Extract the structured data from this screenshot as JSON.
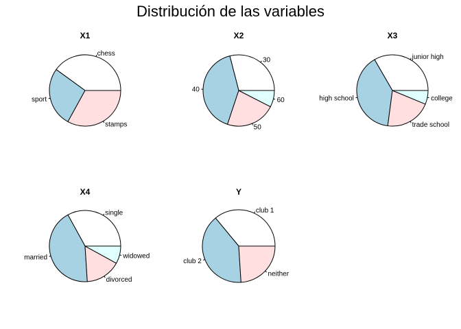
{
  "figure": {
    "title": "Distribución de las variables"
  },
  "chart_data": [
    {
      "type": "pie",
      "title": "X1",
      "categories": [
        "chess",
        "sport",
        "stamps"
      ],
      "values": [
        0.4,
        0.27,
        0.33
      ],
      "colors": [
        "#ffffff",
        "#a6d2e3",
        "#ffdfdf"
      ]
    },
    {
      "type": "pie",
      "title": "X2",
      "categories": [
        "30",
        "40",
        "50",
        "60"
      ],
      "values": [
        0.27,
        0.38,
        0.21,
        0.07
      ],
      "colors": [
        "#ffffff",
        "#a6d2e3",
        "#ffdfdf",
        "#e0ffff"
      ]
    },
    {
      "type": "pie",
      "title": "X3",
      "categories": [
        "junior high",
        "high school",
        "trade school",
        "college"
      ],
      "values": [
        0.32,
        0.38,
        0.2,
        0.06
      ],
      "colors": [
        "#ffffff",
        "#a6d2e3",
        "#ffdfdf",
        "#e0ffff"
      ]
    },
    {
      "type": "pie",
      "title": "X4",
      "categories": [
        "single",
        "married",
        "divorced",
        "widowed"
      ],
      "values": [
        0.33,
        0.43,
        0.16,
        0.08
      ],
      "colors": [
        "#ffffff",
        "#a6d2e3",
        "#ffdfdf",
        "#e0ffff"
      ]
    },
    {
      "type": "pie",
      "title": "Y",
      "categories": [
        "club 1",
        "club 2",
        "neither"
      ],
      "values": [
        0.36,
        0.4,
        0.24
      ],
      "colors": [
        "#ffffff",
        "#a6d2e3",
        "#ffdfdf"
      ]
    }
  ]
}
